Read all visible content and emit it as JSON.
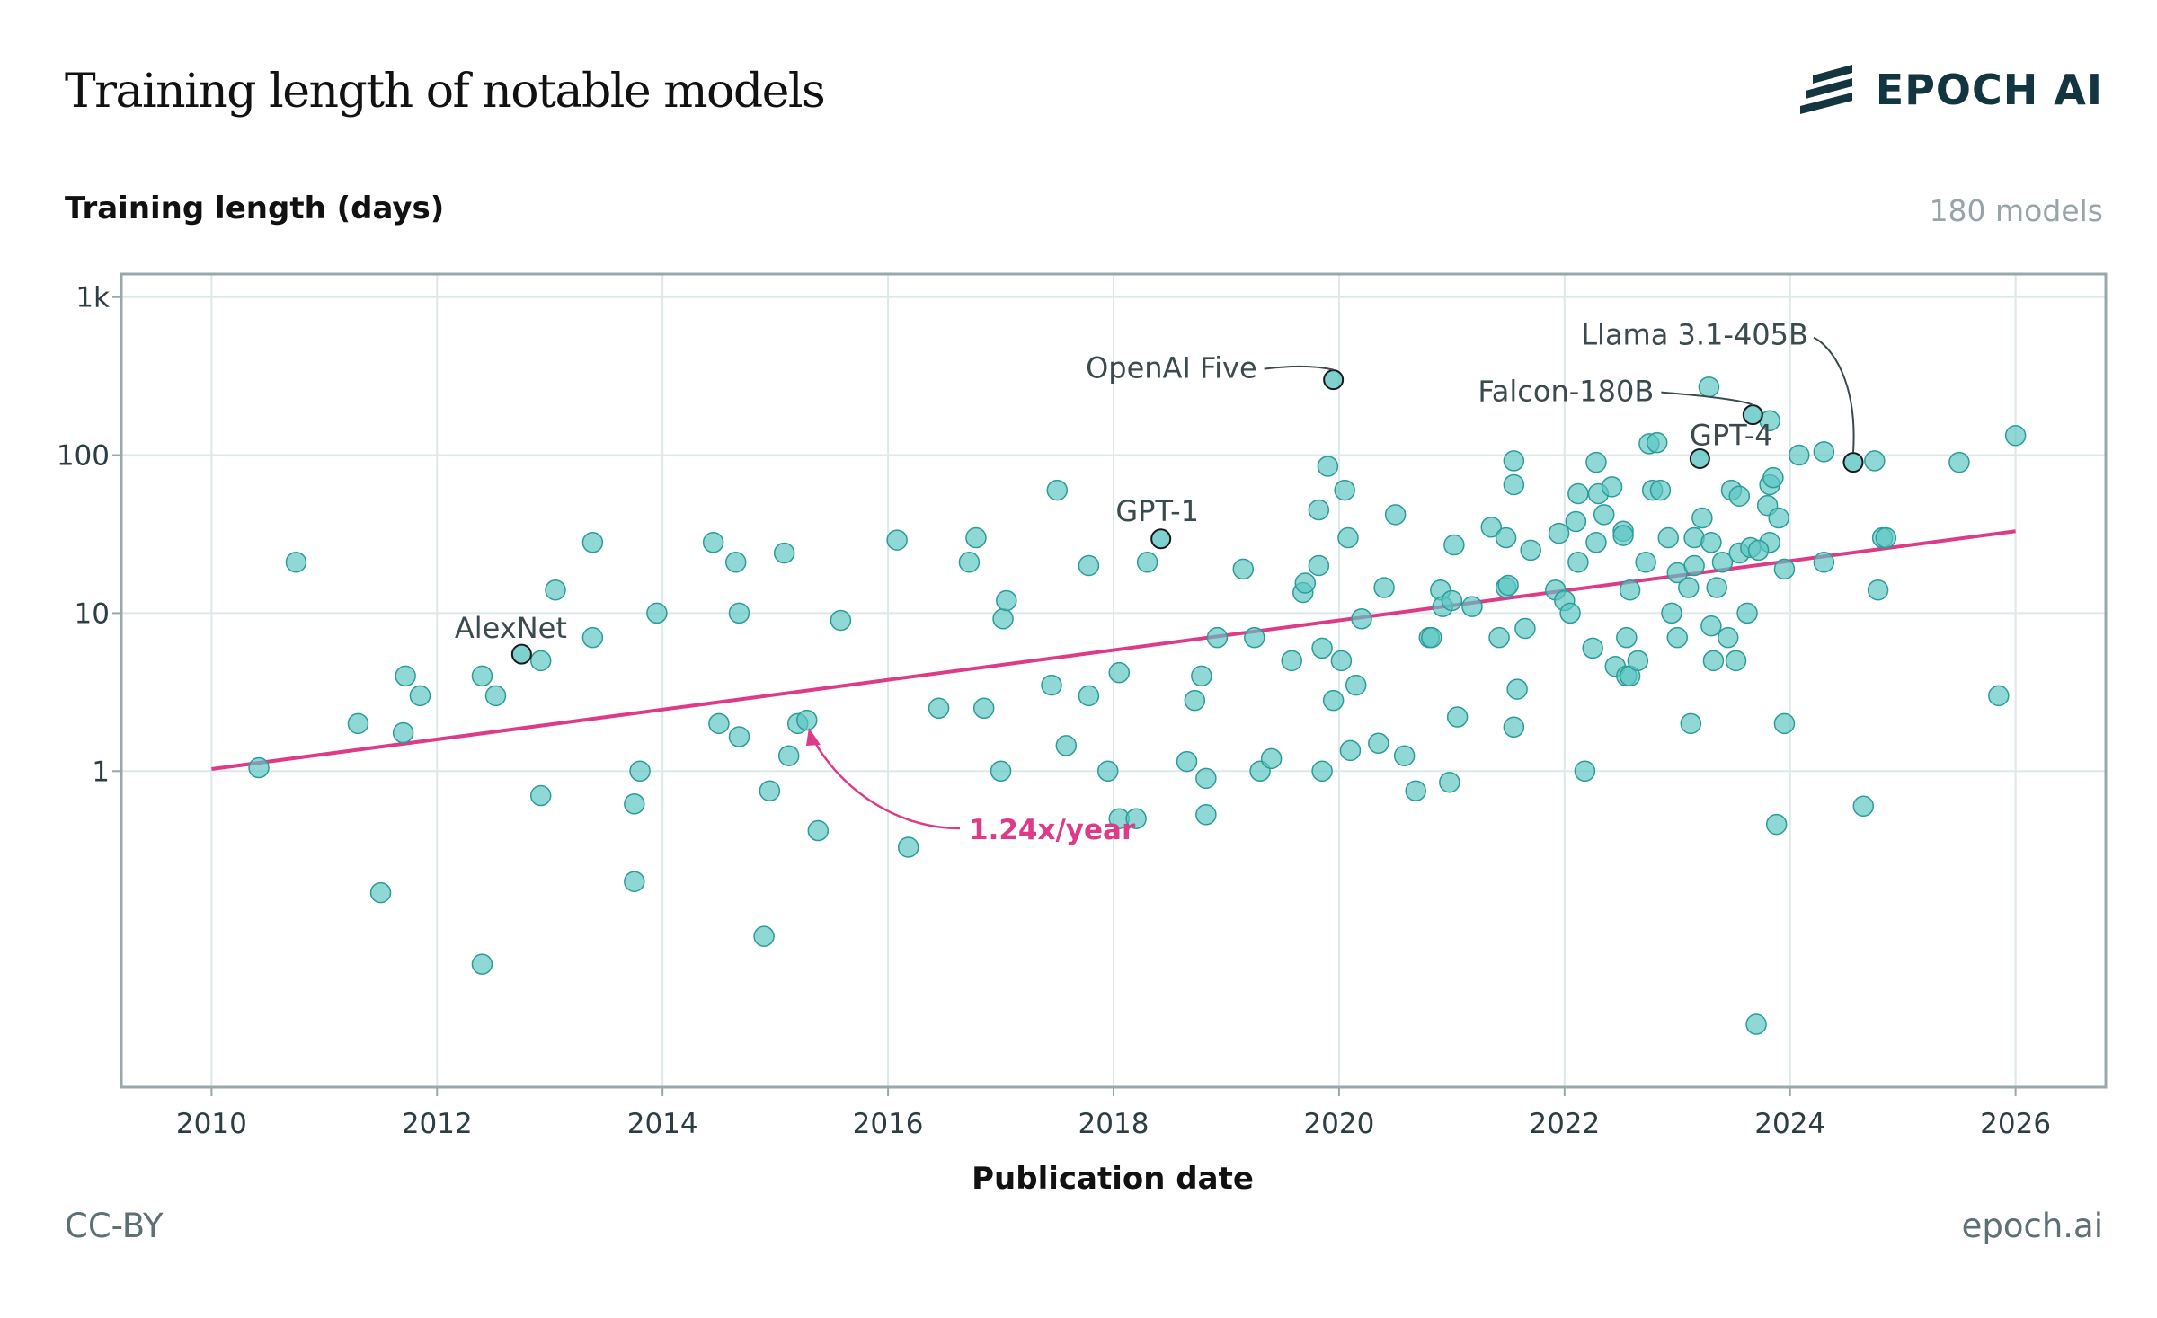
{
  "title": "Training length of notable models",
  "brand": {
    "name": "EPOCH AI",
    "icon": "epoch-logo-icon",
    "color": "#12353f"
  },
  "subtitle": "Training length (days)",
  "model_count": "180 models",
  "xlabel": "Publication date",
  "license": "CC-BY",
  "site": "epoch.ai",
  "colors": {
    "point": "#5cc6c2",
    "point_stroke": "#2b9c98",
    "trend": "#dd3b88",
    "highlight_stroke": "#1a1a1a",
    "grid": "#dde8e8",
    "axis": "#9aa7aa"
  },
  "chart_data": {
    "type": "scatter",
    "xlabel": "Publication date",
    "ylabel": "Training length (days)",
    "y_scale": "log",
    "xlim": [
      2009.2,
      2026.8
    ],
    "ylim": [
      0.01,
      1400
    ],
    "x_ticks": [
      2010,
      2012,
      2014,
      2016,
      2018,
      2020,
      2022,
      2024,
      2026
    ],
    "y_ticks": [
      {
        "value": 1,
        "label": "1"
      },
      {
        "value": 10,
        "label": "10"
      },
      {
        "value": 100,
        "label": "100"
      },
      {
        "value": 1000,
        "label": "1k"
      }
    ],
    "grid": true,
    "trend": {
      "label": "1.24x/year",
      "x": [
        2010.0,
        2026.0
      ],
      "y": [
        1.03,
        33
      ]
    },
    "annotations": [
      {
        "label": "AlexNet",
        "x": 2012.75,
        "y": 5.5
      },
      {
        "label": "GPT-1",
        "x": 2018.42,
        "y": 29.5
      },
      {
        "label": "OpenAI Five",
        "x": 2019.95,
        "y": 300
      },
      {
        "label": "Falcon-180B",
        "x": 2023.67,
        "y": 180
      },
      {
        "label": "GPT-4",
        "x": 2023.2,
        "y": 95
      },
      {
        "label": "Llama 3.1-405B",
        "x": 2024.56,
        "y": 90
      }
    ],
    "points": [
      [
        2010.42,
        1.05
      ],
      [
        2010.75,
        21
      ],
      [
        2011.3,
        2.0
      ],
      [
        2011.5,
        0.17
      ],
      [
        2011.7,
        1.75
      ],
      [
        2011.72,
        4.0
      ],
      [
        2011.85,
        3.0
      ],
      [
        2012.4,
        0.06
      ],
      [
        2012.4,
        4.0
      ],
      [
        2012.52,
        3.0
      ],
      [
        2012.92,
        5.0
      ],
      [
        2012.92,
        0.7
      ],
      [
        2013.05,
        14
      ],
      [
        2013.38,
        28
      ],
      [
        2013.38,
        7.0
      ],
      [
        2013.75,
        0.62
      ],
      [
        2013.75,
        0.2
      ],
      [
        2013.8,
        1.0
      ],
      [
        2013.95,
        10
      ],
      [
        2014.45,
        28
      ],
      [
        2014.5,
        2.0
      ],
      [
        2014.65,
        21
      ],
      [
        2014.68,
        1.65
      ],
      [
        2014.68,
        10
      ],
      [
        2014.9,
        0.09
      ],
      [
        2014.95,
        0.75
      ],
      [
        2015.08,
        24
      ],
      [
        2015.12,
        1.25
      ],
      [
        2015.2,
        2.0
      ],
      [
        2015.28,
        2.1
      ],
      [
        2015.38,
        0.42
      ],
      [
        2015.58,
        9.0
      ],
      [
        2016.08,
        29
      ],
      [
        2016.18,
        0.33
      ],
      [
        2016.45,
        2.5
      ],
      [
        2016.72,
        21
      ],
      [
        2016.78,
        30
      ],
      [
        2016.85,
        2.5
      ],
      [
        2017.0,
        1.0
      ],
      [
        2017.02,
        9.2
      ],
      [
        2017.05,
        12
      ],
      [
        2017.45,
        3.5
      ],
      [
        2017.5,
        60
      ],
      [
        2017.58,
        1.45
      ],
      [
        2017.78,
        20
      ],
      [
        2017.78,
        3.0
      ],
      [
        2017.95,
        1.0
      ],
      [
        2018.05,
        4.2
      ],
      [
        2018.05,
        0.5
      ],
      [
        2018.2,
        0.5
      ],
      [
        2018.3,
        21
      ],
      [
        2018.65,
        1.15
      ],
      [
        2018.72,
        2.8
      ],
      [
        2018.78,
        4.0
      ],
      [
        2018.82,
        0.9
      ],
      [
        2018.82,
        0.53
      ],
      [
        2018.92,
        7.0
      ],
      [
        2019.15,
        19
      ],
      [
        2019.25,
        7.0
      ],
      [
        2019.3,
        1.0
      ],
      [
        2019.4,
        1.2
      ],
      [
        2019.58,
        5.0
      ],
      [
        2019.68,
        13.5
      ],
      [
        2019.7,
        15.5
      ],
      [
        2019.82,
        20
      ],
      [
        2019.82,
        45
      ],
      [
        2019.85,
        6.0
      ],
      [
        2019.85,
        1.0
      ],
      [
        2019.9,
        85
      ],
      [
        2019.95,
        2.8
      ],
      [
        2020.02,
        5.0
      ],
      [
        2020.05,
        60
      ],
      [
        2020.08,
        30
      ],
      [
        2020.1,
        1.35
      ],
      [
        2020.15,
        3.5
      ],
      [
        2020.2,
        9.2
      ],
      [
        2020.35,
        1.5
      ],
      [
        2020.4,
        14.5
      ],
      [
        2020.5,
        42
      ],
      [
        2020.58,
        1.25
      ],
      [
        2020.68,
        0.75
      ],
      [
        2020.8,
        7.0
      ],
      [
        2020.82,
        7.0
      ],
      [
        2020.9,
        14
      ],
      [
        2020.92,
        11
      ],
      [
        2020.98,
        0.85
      ],
      [
        2021.0,
        12
      ],
      [
        2021.02,
        27
      ],
      [
        2021.05,
        2.2
      ],
      [
        2021.18,
        11
      ],
      [
        2021.35,
        35
      ],
      [
        2021.42,
        7.0
      ],
      [
        2021.48,
        30
      ],
      [
        2021.48,
        14.5
      ],
      [
        2021.5,
        15
      ],
      [
        2021.55,
        92
      ],
      [
        2021.55,
        65
      ],
      [
        2021.55,
        1.9
      ],
      [
        2021.58,
        3.3
      ],
      [
        2021.65,
        8.0
      ],
      [
        2021.7,
        25
      ],
      [
        2021.92,
        14
      ],
      [
        2021.95,
        32
      ],
      [
        2022.0,
        12
      ],
      [
        2022.05,
        10
      ],
      [
        2022.1,
        38
      ],
      [
        2022.12,
        57
      ],
      [
        2022.12,
        21
      ],
      [
        2022.18,
        1.0
      ],
      [
        2022.25,
        6.0
      ],
      [
        2022.28,
        90
      ],
      [
        2022.28,
        28
      ],
      [
        2022.3,
        57
      ],
      [
        2022.35,
        42
      ],
      [
        2022.42,
        63
      ],
      [
        2022.45,
        4.6
      ],
      [
        2022.52,
        33
      ],
      [
        2022.52,
        31
      ],
      [
        2022.55,
        4.0
      ],
      [
        2022.55,
        7.0
      ],
      [
        2022.58,
        14
      ],
      [
        2022.58,
        4.0
      ],
      [
        2022.65,
        5.0
      ],
      [
        2022.72,
        21
      ],
      [
        2022.75,
        118
      ],
      [
        2022.78,
        60
      ],
      [
        2022.82,
        120
      ],
      [
        2022.85,
        60
      ],
      [
        2022.92,
        30
      ],
      [
        2022.95,
        10
      ],
      [
        2023.0,
        18
      ],
      [
        2023.0,
        7.0
      ],
      [
        2023.1,
        14.5
      ],
      [
        2023.12,
        2.0
      ],
      [
        2023.15,
        30
      ],
      [
        2023.15,
        20
      ],
      [
        2023.22,
        40
      ],
      [
        2023.28,
        270
      ],
      [
        2023.3,
        28
      ],
      [
        2023.3,
        8.3
      ],
      [
        2023.32,
        5.0
      ],
      [
        2023.35,
        14.5
      ],
      [
        2023.4,
        21
      ],
      [
        2023.45,
        7.0
      ],
      [
        2023.48,
        60
      ],
      [
        2023.52,
        5.0
      ],
      [
        2023.55,
        55
      ],
      [
        2023.55,
        24
      ],
      [
        2023.62,
        10
      ],
      [
        2023.65,
        26
      ],
      [
        2023.82,
        28
      ],
      [
        2023.82,
        165
      ],
      [
        2023.82,
        65
      ],
      [
        2023.85,
        72
      ],
      [
        2023.7,
        0.025
      ],
      [
        2023.72,
        25
      ],
      [
        2023.8,
        48
      ],
      [
        2023.88,
        0.46
      ],
      [
        2023.9,
        40
      ],
      [
        2023.95,
        2.0
      ],
      [
        2023.95,
        19
      ],
      [
        2024.08,
        100
      ],
      [
        2024.3,
        105
      ],
      [
        2024.3,
        21
      ],
      [
        2024.65,
        0.6
      ],
      [
        2024.75,
        92
      ],
      [
        2024.78,
        14
      ],
      [
        2024.82,
        30
      ],
      [
        2024.85,
        30
      ],
      [
        2025.5,
        90
      ],
      [
        2025.85,
        3.0
      ],
      [
        2026.0,
        133
      ]
    ]
  }
}
